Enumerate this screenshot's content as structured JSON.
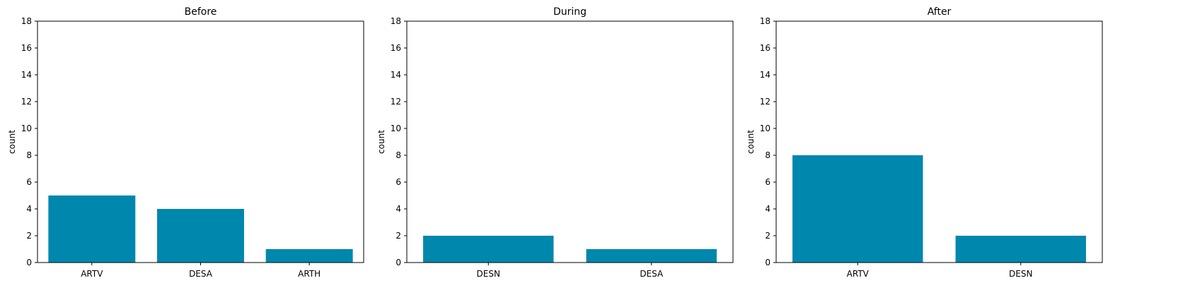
{
  "chart_data": [
    {
      "type": "bar",
      "title": "Before",
      "categories": [
        "ARTV",
        "DESA",
        "ARTH"
      ],
      "values": [
        5,
        4,
        1
      ],
      "xlabel": "",
      "ylabel": "count",
      "ylim": [
        0,
        18
      ],
      "yticks": [
        0,
        2,
        4,
        6,
        8,
        10,
        12,
        14,
        16,
        18
      ],
      "grid": false,
      "bar_color": "#0087ad"
    },
    {
      "type": "bar",
      "title": "During",
      "categories": [
        "DESN",
        "DESA"
      ],
      "values": [
        2,
        1
      ],
      "xlabel": "",
      "ylabel": "count",
      "ylim": [
        0,
        18
      ],
      "yticks": [
        0,
        2,
        4,
        6,
        8,
        10,
        12,
        14,
        16,
        18
      ],
      "grid": false,
      "bar_color": "#0087ad"
    },
    {
      "type": "bar",
      "title": "After",
      "categories": [
        "ARTV",
        "DESN"
      ],
      "values": [
        8,
        2
      ],
      "xlabel": "",
      "ylabel": "count",
      "ylim": [
        0,
        18
      ],
      "yticks": [
        0,
        2,
        4,
        6,
        8,
        10,
        12,
        14,
        16,
        18
      ],
      "grid": false,
      "bar_color": "#0087ad"
    }
  ]
}
